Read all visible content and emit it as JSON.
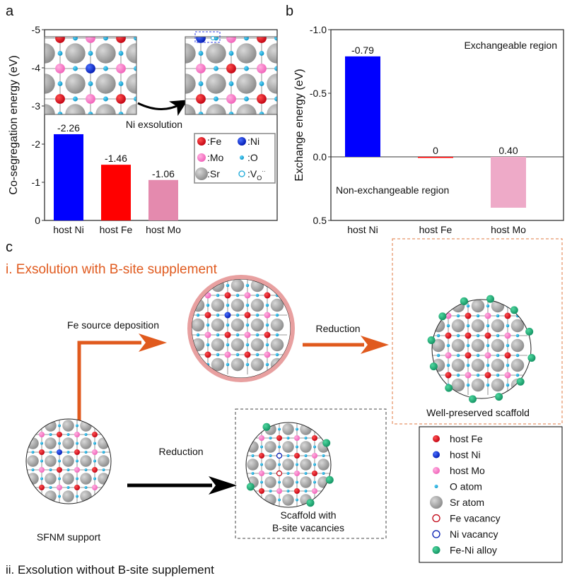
{
  "panel_labels": {
    "a": "a",
    "b": "b",
    "c": "c"
  },
  "chart_data": [
    {
      "type": "bar",
      "ylabel": "Co-segregation energy (eV)",
      "categories": [
        "host Ni",
        "host Fe",
        "host Mo"
      ],
      "values": [
        -2.26,
        -1.46,
        -1.06
      ],
      "data_labels": [
        "-2.26",
        "-1.46",
        "-1.06"
      ],
      "colors": [
        "#0000ff",
        "#ff0000",
        "#e48aae"
      ],
      "ylim": [
        0,
        -5
      ],
      "yticks": [
        "0",
        "-1",
        "-2",
        "-3",
        "-4",
        "-5"
      ],
      "inverted_y": true,
      "annotation": "Ni exsolution",
      "legend": [
        {
          "label": ":Fe",
          "color": "#e01020"
        },
        {
          "label": ":Ni",
          "color": "#1030d0"
        },
        {
          "label": ":Mo",
          "color": "#ff80c8"
        },
        {
          "label": ":O",
          "color": "#18a8d8"
        },
        {
          "label": ":Sr",
          "color": "#999999"
        },
        {
          "label": ":V",
          "sub": "O",
          "sup": "··",
          "color": "#18a8d8"
        }
      ]
    },
    {
      "type": "bar",
      "ylabel": "Exchange energy (eV)",
      "categories": [
        "host Ni",
        "host Fe",
        "host Mo"
      ],
      "values": [
        -0.79,
        0,
        0.4
      ],
      "data_labels": [
        "-0.79",
        "0",
        "0.40"
      ],
      "colors": [
        "#0000ff",
        "#ff0000",
        "#eeaac8"
      ],
      "ylim": [
        0.5,
        -1.0
      ],
      "yticks": [
        "0.5",
        "0.0",
        "-0.5",
        "-1.0"
      ],
      "inverted_y": true,
      "region_labels": {
        "upper": "Exchangeable region",
        "lower": "Non-exchangeable region"
      }
    }
  ],
  "panel_c": {
    "title_i": "i. Exsolution with B-site supplement",
    "title_ii": "ii. Exsolution without B-site supplement",
    "step_fe": "Fe source deposition",
    "step_reduction_top": "Reduction",
    "step_reduction_bottom": "Reduction",
    "caption_support": "SFNM support",
    "caption_preserved": "Well-preserved scaffold",
    "caption_vacancy_1": "Scaffold with",
    "caption_vacancy_2": "B-site vacancies",
    "accent_color": "#e05a1e",
    "legend": [
      {
        "label": "host Fe",
        "icon": "fe-atom"
      },
      {
        "label": "host Ni",
        "icon": "ni-atom"
      },
      {
        "label": "host Mo",
        "icon": "mo-atom"
      },
      {
        "label": "O atom",
        "icon": "o-atom"
      },
      {
        "label": "Sr atom",
        "icon": "sr-atom"
      },
      {
        "label": "Fe vacancy",
        "icon": "fe-vacancy"
      },
      {
        "label": "Ni vacancy",
        "icon": "ni-vacancy"
      },
      {
        "label": "Fe-Ni alloy",
        "icon": "alloy-particle"
      }
    ]
  }
}
